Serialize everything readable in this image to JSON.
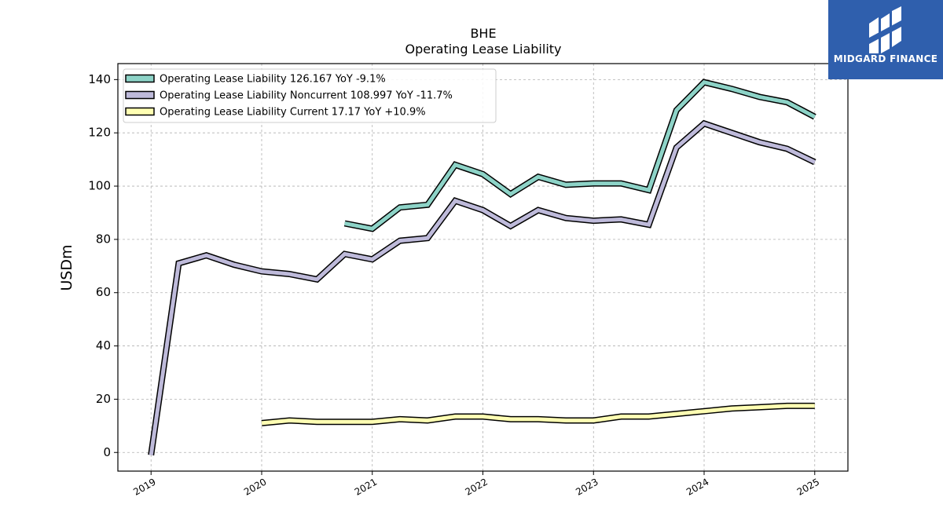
{
  "chart_data": {
    "type": "line",
    "title": "BHE",
    "subtitle": "Operating Lease Liability",
    "xlabel": "",
    "ylabel": "USDm",
    "xlim": [
      2018.7,
      2025.3
    ],
    "ylim": [
      -7,
      146
    ],
    "yticks": [
      0,
      20,
      40,
      60,
      80,
      100,
      120,
      140
    ],
    "xticks": [
      2019,
      2020,
      2021,
      2022,
      2023,
      2024,
      2025
    ],
    "grid": true,
    "legend_position": "top-left",
    "series": [
      {
        "name": "Operating Lease Liability  126.167 YoY -9.1%",
        "color": "#8dd3c7",
        "x": [
          2020.75,
          2021.0,
          2021.25,
          2021.5,
          2021.75,
          2022.0,
          2022.25,
          2022.5,
          2022.75,
          2023.0,
          2023.25,
          2023.5,
          2023.75,
          2024.0,
          2024.25,
          2024.5,
          2024.75,
          2025.0
        ],
        "y": [
          86,
          84,
          92,
          93,
          108,
          104.5,
          97,
          103.5,
          100.5,
          101,
          101,
          98.5,
          128.5,
          139,
          136.5,
          133.5,
          131.5,
          126
        ]
      },
      {
        "name": "Operating Lease Liability Noncurrent  108.997 YoY -11.7%",
        "color": "#bebada",
        "x": [
          2019.0,
          2019.25,
          2019.5,
          2019.75,
          2020.0,
          2020.25,
          2020.5,
          2020.75,
          2021.0,
          2021.25,
          2021.5,
          2021.75,
          2022.0,
          2022.25,
          2022.5,
          2022.75,
          2023.0,
          2023.25,
          2023.5,
          2023.75,
          2024.0,
          2024.25,
          2024.5,
          2024.75,
          2025.0
        ],
        "y": [
          -1,
          71,
          74,
          70.5,
          68,
          67,
          65,
          74.5,
          72.5,
          79.5,
          80.5,
          94.5,
          91,
          85,
          91,
          88,
          87,
          87.5,
          85.5,
          114.5,
          123.5,
          120,
          116.5,
          114,
          109
        ]
      },
      {
        "name": "Operating Lease Liability Current  17.17 YoY +10.9%",
        "color": "#ffffb3",
        "x": [
          2020.0,
          2020.25,
          2020.5,
          2020.75,
          2021.0,
          2021.25,
          2021.5,
          2021.75,
          2022.0,
          2022.25,
          2022.5,
          2022.75,
          2023.0,
          2023.25,
          2023.5,
          2023.75,
          2024.0,
          2024.25,
          2024.5,
          2024.75,
          2025.0
        ],
        "y": [
          11,
          12,
          11.5,
          11.5,
          11.5,
          12.5,
          12,
          13.5,
          13.5,
          12.5,
          12.5,
          12,
          12,
          13.5,
          13.5,
          14.5,
          15.5,
          16.5,
          17,
          17.5,
          17.5
        ]
      }
    ]
  },
  "logo": {
    "text": "MIDGARD FINANCE",
    "background": "#2f5fad"
  }
}
